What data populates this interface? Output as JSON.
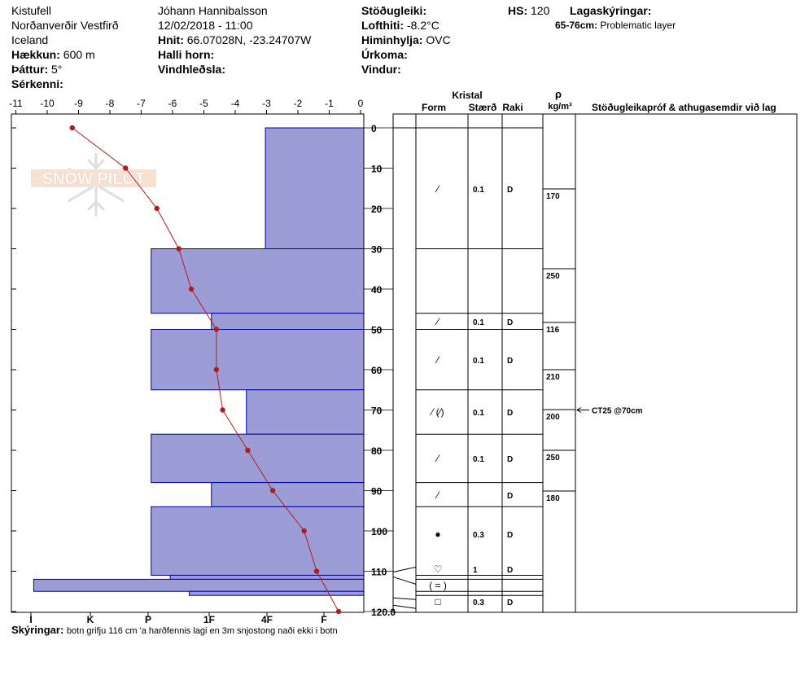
{
  "header": {
    "location": "Kistufell",
    "region": "Norðanverðir Vestfirð",
    "country": "Iceland",
    "elevation_label": "Hækkun:",
    "elevation_value": "600 m",
    "aspect_label": "Þáttur:",
    "aspect_value": "5°",
    "special_label": "Sérkenni:",
    "observer": "Jóhann Hannibalsson",
    "datetime": "12/02/2018 - 11:00",
    "coords_label": "Hnit:",
    "coords_value": "66.07028N, -23.24707W",
    "slope_label": "Halli horn:",
    "wind_loading_label": "Vindhleðsla:",
    "stability_label": "Stöðugleiki:",
    "air_temp_label": "Lofthiti:",
    "air_temp_value": "-8.2°C",
    "sky_label": "Himinhylja:",
    "sky_value": "OVC",
    "precip_label": "Úrkoma:",
    "wind_label": "Vindur:",
    "hs_label": "HS:",
    "hs_value": "120",
    "layer_notes_label": "Lagaskýringar:",
    "layer_notes_range": "65-76cm:",
    "layer_notes_text": "Problematic layer"
  },
  "watermark": {
    "text": "SNOW PILOT"
  },
  "table": {
    "crystal_header": "Kristal",
    "form_header": "Form",
    "size_header": "Stærð",
    "moisture_header": "Raki",
    "density_symbol": "ρ",
    "density_unit": "kg/m³",
    "comments_header": "Stöðugleikapróf & athugasemdir við lag"
  },
  "footer": {
    "label": "Skýringar:",
    "text": "botn grifju 116 cm 'a harðfennis lagi en 3m snjostong naði ekki i botn"
  },
  "chart_data": {
    "type": "bar",
    "temperature_ticks": [
      "-11",
      "-10",
      "-9",
      "-8",
      "-7",
      "-6",
      "-5",
      "-4",
      "-3",
      "-2",
      "-1",
      "0"
    ],
    "hardness_ticks": [
      "I",
      "K",
      "P",
      "1F",
      "4F",
      "F"
    ],
    "depth_ticks": [
      "0",
      "10",
      "20",
      "30",
      "40",
      "50",
      "60",
      "70",
      "80",
      "90",
      "100",
      "110",
      "120.0"
    ],
    "depth_range": [
      0,
      120
    ],
    "temperature_range": [
      -11,
      0
    ],
    "hardness_layers": [
      {
        "top": 0,
        "bottom": 30,
        "hardness_pos": 1.55
      },
      {
        "top": 30,
        "bottom": 46,
        "hardness_pos": 3.35
      },
      {
        "top": 46,
        "bottom": 50,
        "hardness_pos": 2.4
      },
      {
        "top": 50,
        "bottom": 65,
        "hardness_pos": 3.35
      },
      {
        "top": 65,
        "bottom": 76,
        "hardness_pos": 1.85
      },
      {
        "top": 76,
        "bottom": 88,
        "hardness_pos": 3.35
      },
      {
        "top": 88,
        "bottom": 94,
        "hardness_pos": 2.4
      },
      {
        "top": 94,
        "bottom": 111,
        "hardness_pos": 3.35
      },
      {
        "top": 111,
        "bottom": 112,
        "hardness_pos": 3.05
      },
      {
        "top": 112,
        "bottom": 115,
        "hardness_pos": 5.2
      },
      {
        "top": 115,
        "bottom": 116,
        "hardness_pos": 2.75
      }
    ],
    "temperature_profile": [
      {
        "depth": 0,
        "temp": -9.2
      },
      {
        "depth": 10,
        "temp": -7.5
      },
      {
        "depth": 20,
        "temp": -6.5
      },
      {
        "depth": 30,
        "temp": -5.8
      },
      {
        "depth": 40,
        "temp": -5.4
      },
      {
        "depth": 50,
        "temp": -4.6
      },
      {
        "depth": 60,
        "temp": -4.6
      },
      {
        "depth": 70,
        "temp": -4.4
      },
      {
        "depth": 80,
        "temp": -3.6
      },
      {
        "depth": 90,
        "temp": -2.8
      },
      {
        "depth": 100,
        "temp": -1.8
      },
      {
        "depth": 110,
        "temp": -1.4
      },
      {
        "depth": 120,
        "temp": -0.7
      }
    ],
    "layer_boundaries": [
      0,
      30,
      46,
      50,
      65,
      76,
      88,
      94,
      111,
      112,
      115,
      116
    ],
    "layers": [
      {
        "top": 0,
        "bottom": 30,
        "form": "⁄",
        "size": "0.1",
        "moisture": "D"
      },
      {
        "top": 30,
        "bottom": 46,
        "form": "",
        "size": "",
        "moisture": ""
      },
      {
        "top": 46,
        "bottom": 50,
        "form": "⁄",
        "size": "0.1",
        "moisture": "D"
      },
      {
        "top": 50,
        "bottom": 65,
        "form": "⁄",
        "size": "0.1",
        "moisture": "D"
      },
      {
        "top": 65,
        "bottom": 76,
        "form": "⁄ (⁄)",
        "size": "0.1",
        "moisture": "D"
      },
      {
        "top": 76,
        "bottom": 88,
        "form": "⁄",
        "size": "0.1",
        "moisture": "D"
      },
      {
        "top": 88,
        "bottom": 94,
        "form": "⁄",
        "size": "",
        "moisture": "D"
      },
      {
        "top": 94,
        "bottom": 111,
        "form": "●",
        "size": "0.3",
        "moisture": "D"
      },
      {
        "top": 111,
        "bottom": 112,
        "form": "♡",
        "size": "1",
        "moisture": "D"
      },
      {
        "top": 112,
        "bottom": 115,
        "form": "( = )",
        "size": "",
        "moisture": ""
      },
      {
        "top": 115,
        "bottom": 116,
        "form": "□",
        "size": "0.3",
        "moisture": "D"
      }
    ],
    "density_boundaries": [
      15,
      35,
      50,
      60,
      70,
      80,
      90
    ],
    "densities": [
      {
        "depth": 15,
        "value": "170"
      },
      {
        "depth": 35,
        "value": "250"
      },
      {
        "depth": 50,
        "value": "116"
      },
      {
        "depth": 60,
        "value": "210"
      },
      {
        "depth": 70,
        "value": "200"
      },
      {
        "depth": 80,
        "value": "250"
      },
      {
        "depth": 90,
        "value": "180"
      }
    ],
    "stability_tests": [
      {
        "depth": 70,
        "label": "CT25 @70cm"
      }
    ],
    "colors": {
      "hardness_fill": "#9c9cd7",
      "hardness_stroke": "#0000a0",
      "temperature": "#b01c1c"
    }
  }
}
